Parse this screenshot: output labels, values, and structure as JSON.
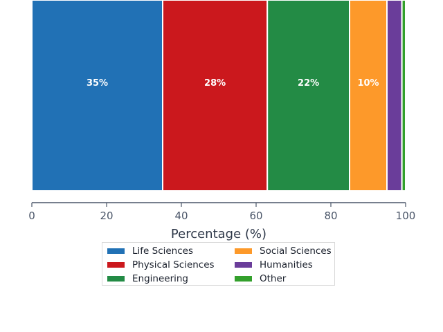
{
  "chart_data": {
    "type": "bar",
    "orientation": "horizontal-stacked",
    "title": "",
    "xlabel": "Percentage (%)",
    "ylabel": "",
    "xlim": [
      0,
      100
    ],
    "x_ticks": [
      "0",
      "20",
      "40",
      "60",
      "80",
      "100"
    ],
    "grid": false,
    "legend_position": "bottom-center",
    "series": [
      {
        "name": "Life Sciences",
        "value": 35,
        "label": "35%",
        "color": "#2171b5"
      },
      {
        "name": "Physical Sciences",
        "value": 28,
        "label": "28%",
        "color": "#cb181d"
      },
      {
        "name": "Engineering",
        "value": 22,
        "label": "22%",
        "color": "#238b45"
      },
      {
        "name": "Social Sciences",
        "value": 10,
        "label": "10%",
        "color": "#fd992a"
      },
      {
        "name": "Humanities",
        "value": 4,
        "label": "",
        "color": "#6a3d9a"
      },
      {
        "name": "Other",
        "value": 1,
        "label": "",
        "color": "#33a02c"
      }
    ]
  }
}
